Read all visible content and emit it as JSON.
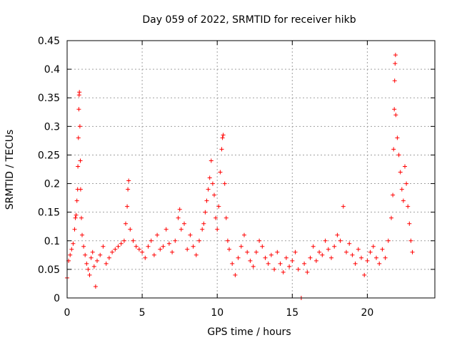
{
  "chart_data": {
    "type": "scatter",
    "title": "Day 059 of 2022, SRMTID for receiver hikb",
    "xlabel": "GPS time / hours",
    "ylabel": "SRMTID / TECUs",
    "xlim": [
      0,
      24.5
    ],
    "ylim": [
      0,
      0.45
    ],
    "xticks": [
      0,
      5,
      10,
      15,
      20
    ],
    "yticks": [
      0,
      0.05,
      0.1,
      0.15,
      0.2,
      0.25,
      0.3,
      0.35,
      0.4,
      0.45
    ],
    "xtick_labels": [
      "0",
      "5",
      "10",
      "15",
      "20"
    ],
    "ytick_labels": [
      "0",
      "0.05",
      "0.1",
      "0.15",
      "0.2",
      "0.25",
      "0.3",
      "0.35",
      "0.4",
      "0.45"
    ],
    "grid": true,
    "marker": "+",
    "color": "#ff0000",
    "series": [
      {
        "name": "SRMTID",
        "points": [
          [
            0.0,
            0.035
          ],
          [
            0.1,
            0.065
          ],
          [
            0.2,
            0.075
          ],
          [
            0.3,
            0.085
          ],
          [
            0.4,
            0.095
          ],
          [
            0.5,
            0.12
          ],
          [
            0.55,
            0.14
          ],
          [
            0.6,
            0.145
          ],
          [
            0.65,
            0.17
          ],
          [
            0.7,
            0.19
          ],
          [
            0.72,
            0.23
          ],
          [
            0.75,
            0.28
          ],
          [
            0.78,
            0.33
          ],
          [
            0.8,
            0.355
          ],
          [
            0.82,
            0.36
          ],
          [
            0.85,
            0.3
          ],
          [
            0.88,
            0.24
          ],
          [
            0.9,
            0.19
          ],
          [
            0.95,
            0.14
          ],
          [
            1.0,
            0.11
          ],
          [
            1.1,
            0.09
          ],
          [
            1.2,
            0.075
          ],
          [
            1.3,
            0.06
          ],
          [
            1.4,
            0.05
          ],
          [
            1.5,
            0.04
          ],
          [
            1.6,
            0.07
          ],
          [
            1.7,
            0.08
          ],
          [
            1.8,
            0.055
          ],
          [
            1.9,
            0.02
          ],
          [
            2.0,
            0.065
          ],
          [
            2.2,
            0.075
          ],
          [
            2.4,
            0.09
          ],
          [
            2.6,
            0.06
          ],
          [
            2.8,
            0.07
          ],
          [
            3.0,
            0.08
          ],
          [
            3.2,
            0.085
          ],
          [
            3.4,
            0.09
          ],
          [
            3.6,
            0.095
          ],
          [
            3.8,
            0.1
          ],
          [
            3.9,
            0.13
          ],
          [
            4.0,
            0.16
          ],
          [
            4.05,
            0.19
          ],
          [
            4.1,
            0.205
          ],
          [
            4.2,
            0.12
          ],
          [
            4.4,
            0.1
          ],
          [
            4.6,
            0.09
          ],
          [
            4.8,
            0.085
          ],
          [
            5.0,
            0.08
          ],
          [
            5.2,
            0.07
          ],
          [
            5.4,
            0.09
          ],
          [
            5.6,
            0.1
          ],
          [
            5.8,
            0.075
          ],
          [
            6.0,
            0.11
          ],
          [
            6.2,
            0.085
          ],
          [
            6.4,
            0.09
          ],
          [
            6.6,
            0.12
          ],
          [
            6.8,
            0.095
          ],
          [
            7.0,
            0.08
          ],
          [
            7.2,
            0.1
          ],
          [
            7.4,
            0.14
          ],
          [
            7.5,
            0.155
          ],
          [
            7.6,
            0.12
          ],
          [
            7.8,
            0.13
          ],
          [
            8.0,
            0.085
          ],
          [
            8.2,
            0.11
          ],
          [
            8.4,
            0.09
          ],
          [
            8.6,
            0.075
          ],
          [
            8.8,
            0.1
          ],
          [
            9.0,
            0.12
          ],
          [
            9.1,
            0.13
          ],
          [
            9.2,
            0.15
          ],
          [
            9.3,
            0.17
          ],
          [
            9.4,
            0.19
          ],
          [
            9.5,
            0.21
          ],
          [
            9.6,
            0.24
          ],
          [
            9.7,
            0.2
          ],
          [
            9.8,
            0.18
          ],
          [
            9.9,
            0.14
          ],
          [
            10.0,
            0.12
          ],
          [
            10.1,
            0.16
          ],
          [
            10.2,
            0.22
          ],
          [
            10.3,
            0.26
          ],
          [
            10.35,
            0.28
          ],
          [
            10.4,
            0.285
          ],
          [
            10.5,
            0.2
          ],
          [
            10.6,
            0.14
          ],
          [
            10.7,
            0.1
          ],
          [
            10.8,
            0.085
          ],
          [
            11.0,
            0.06
          ],
          [
            11.2,
            0.04
          ],
          [
            11.4,
            0.07
          ],
          [
            11.6,
            0.09
          ],
          [
            11.8,
            0.11
          ],
          [
            12.0,
            0.08
          ],
          [
            12.2,
            0.065
          ],
          [
            12.4,
            0.055
          ],
          [
            12.6,
            0.08
          ],
          [
            12.8,
            0.1
          ],
          [
            13.0,
            0.09
          ],
          [
            13.2,
            0.07
          ],
          [
            13.4,
            0.06
          ],
          [
            13.6,
            0.075
          ],
          [
            13.8,
            0.05
          ],
          [
            14.0,
            0.08
          ],
          [
            14.2,
            0.06
          ],
          [
            14.4,
            0.045
          ],
          [
            14.6,
            0.07
          ],
          [
            14.8,
            0.055
          ],
          [
            15.0,
            0.065
          ],
          [
            15.2,
            0.08
          ],
          [
            15.4,
            0.05
          ],
          [
            15.6,
            0.0
          ],
          [
            15.8,
            0.06
          ],
          [
            16.0,
            0.045
          ],
          [
            16.2,
            0.07
          ],
          [
            16.4,
            0.09
          ],
          [
            16.6,
            0.065
          ],
          [
            16.8,
            0.08
          ],
          [
            17.0,
            0.075
          ],
          [
            17.2,
            0.1
          ],
          [
            17.4,
            0.085
          ],
          [
            17.6,
            0.07
          ],
          [
            17.8,
            0.09
          ],
          [
            18.0,
            0.11
          ],
          [
            18.2,
            0.1
          ],
          [
            18.4,
            0.16
          ],
          [
            18.6,
            0.08
          ],
          [
            18.8,
            0.095
          ],
          [
            19.0,
            0.075
          ],
          [
            19.2,
            0.06
          ],
          [
            19.4,
            0.085
          ],
          [
            19.6,
            0.07
          ],
          [
            19.8,
            0.04
          ],
          [
            20.0,
            0.065
          ],
          [
            20.2,
            0.08
          ],
          [
            20.4,
            0.09
          ],
          [
            20.6,
            0.07
          ],
          [
            20.8,
            0.06
          ],
          [
            21.0,
            0.085
          ],
          [
            21.2,
            0.07
          ],
          [
            21.4,
            0.1
          ],
          [
            21.6,
            0.14
          ],
          [
            21.7,
            0.18
          ],
          [
            21.75,
            0.26
          ],
          [
            21.8,
            0.33
          ],
          [
            21.82,
            0.38
          ],
          [
            21.85,
            0.41
          ],
          [
            21.88,
            0.425
          ],
          [
            21.9,
            0.32
          ],
          [
            22.0,
            0.28
          ],
          [
            22.1,
            0.25
          ],
          [
            22.2,
            0.22
          ],
          [
            22.3,
            0.19
          ],
          [
            22.4,
            0.17
          ],
          [
            22.5,
            0.23
          ],
          [
            22.6,
            0.2
          ],
          [
            22.7,
            0.16
          ],
          [
            22.8,
            0.13
          ],
          [
            22.9,
            0.1
          ],
          [
            23.0,
            0.08
          ]
        ]
      }
    ]
  }
}
